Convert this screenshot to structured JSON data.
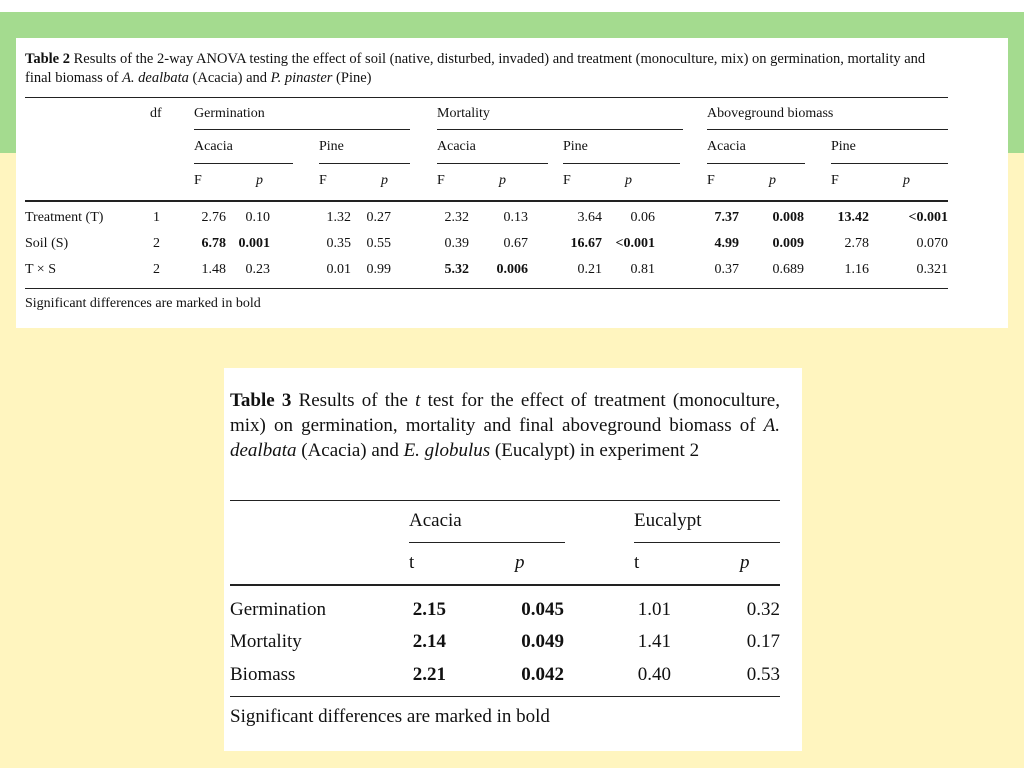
{
  "table2": {
    "caption": {
      "label": "Table 2",
      "text_a": " Results of the 2-way ANOVA testing the effect of soil (native, disturbed, invaded) and treatment (monoculture, mix) on germination, mortality and final biomass of ",
      "species1": "A. dealbata",
      "text_b": " (Acacia) and ",
      "species2": "P. pinaster",
      "text_c": " (Pine)"
    },
    "df_header": "df",
    "groups": [
      "Germination",
      "Mortality",
      "Aboveground biomass"
    ],
    "subgroups": [
      "Acacia",
      "Pine",
      "Acacia",
      "Pine",
      "Acacia",
      "Pine"
    ],
    "stat_headers": [
      "F",
      "p",
      "F",
      "p",
      "F",
      "p",
      "F",
      "p",
      "F",
      "p",
      "F",
      "p"
    ],
    "rows": [
      {
        "label": "Treatment (T)",
        "df": "1",
        "cells": [
          {
            "v": "2.76",
            "b": false
          },
          {
            "v": "0.10",
            "b": false
          },
          {
            "v": "1.32",
            "b": false
          },
          {
            "v": "0.27",
            "b": false
          },
          {
            "v": "2.32",
            "b": false
          },
          {
            "v": "0.13",
            "b": false
          },
          {
            "v": "3.64",
            "b": false
          },
          {
            "v": "0.06",
            "b": false
          },
          {
            "v": "7.37",
            "b": true
          },
          {
            "v": "0.008",
            "b": true
          },
          {
            "v": "13.42",
            "b": true
          },
          {
            "v": "<0.001",
            "b": true
          }
        ]
      },
      {
        "label": "Soil (S)",
        "df": "2",
        "cells": [
          {
            "v": "6.78",
            "b": true
          },
          {
            "v": "0.001",
            "b": true
          },
          {
            "v": "0.35",
            "b": false
          },
          {
            "v": "0.55",
            "b": false
          },
          {
            "v": "0.39",
            "b": false
          },
          {
            "v": "0.67",
            "b": false
          },
          {
            "v": "16.67",
            "b": true
          },
          {
            "v": "<0.001",
            "b": true
          },
          {
            "v": "4.99",
            "b": true
          },
          {
            "v": "0.009",
            "b": true
          },
          {
            "v": "2.78",
            "b": false
          },
          {
            "v": "0.070",
            "b": false
          }
        ]
      },
      {
        "label": "T × S",
        "df": "2",
        "cells": [
          {
            "v": "1.48",
            "b": false
          },
          {
            "v": "0.23",
            "b": false
          },
          {
            "v": "0.01",
            "b": false
          },
          {
            "v": "0.99",
            "b": false
          },
          {
            "v": "5.32",
            "b": true
          },
          {
            "v": "0.006",
            "b": true
          },
          {
            "v": "0.21",
            "b": false
          },
          {
            "v": "0.81",
            "b": false
          },
          {
            "v": "0.37",
            "b": false
          },
          {
            "v": "0.689",
            "b": false
          },
          {
            "v": "1.16",
            "b": false
          },
          {
            "v": "0.321",
            "b": false
          }
        ]
      }
    ],
    "footnote": "Significant differences are marked in bold"
  },
  "table3": {
    "caption": {
      "label": "Table 3",
      "text_a": " Results of the ",
      "t_symbol": "t",
      "text_b": " test for the effect of treatment (monoculture, mix) on germination, mortality and final aboveground biomass of ",
      "species1": "A. dealbata",
      "text_c": " (Acacia) and ",
      "species2": "E. globulus",
      "text_d": " (Eucalypt) in experiment 2"
    },
    "groups": [
      "Acacia",
      "Eucalypt"
    ],
    "stat_headers": [
      "t",
      "p",
      "t",
      "p"
    ],
    "rows": [
      {
        "label": "Germination",
        "cells": [
          {
            "v": "2.15",
            "b": true
          },
          {
            "v": "0.045",
            "b": true
          },
          {
            "v": "1.01",
            "b": false
          },
          {
            "v": "0.32",
            "b": false
          }
        ]
      },
      {
        "label": "Mortality",
        "cells": [
          {
            "v": "2.14",
            "b": true
          },
          {
            "v": "0.049",
            "b": true
          },
          {
            "v": "1.41",
            "b": false
          },
          {
            "v": "0.17",
            "b": false
          }
        ]
      },
      {
        "label": "Biomass",
        "cells": [
          {
            "v": "2.21",
            "b": true
          },
          {
            "v": "0.042",
            "b": true
          },
          {
            "v": "0.40",
            "b": false
          },
          {
            "v": "0.53",
            "b": false
          }
        ]
      }
    ],
    "footnote": "Significant differences are marked in bold"
  }
}
